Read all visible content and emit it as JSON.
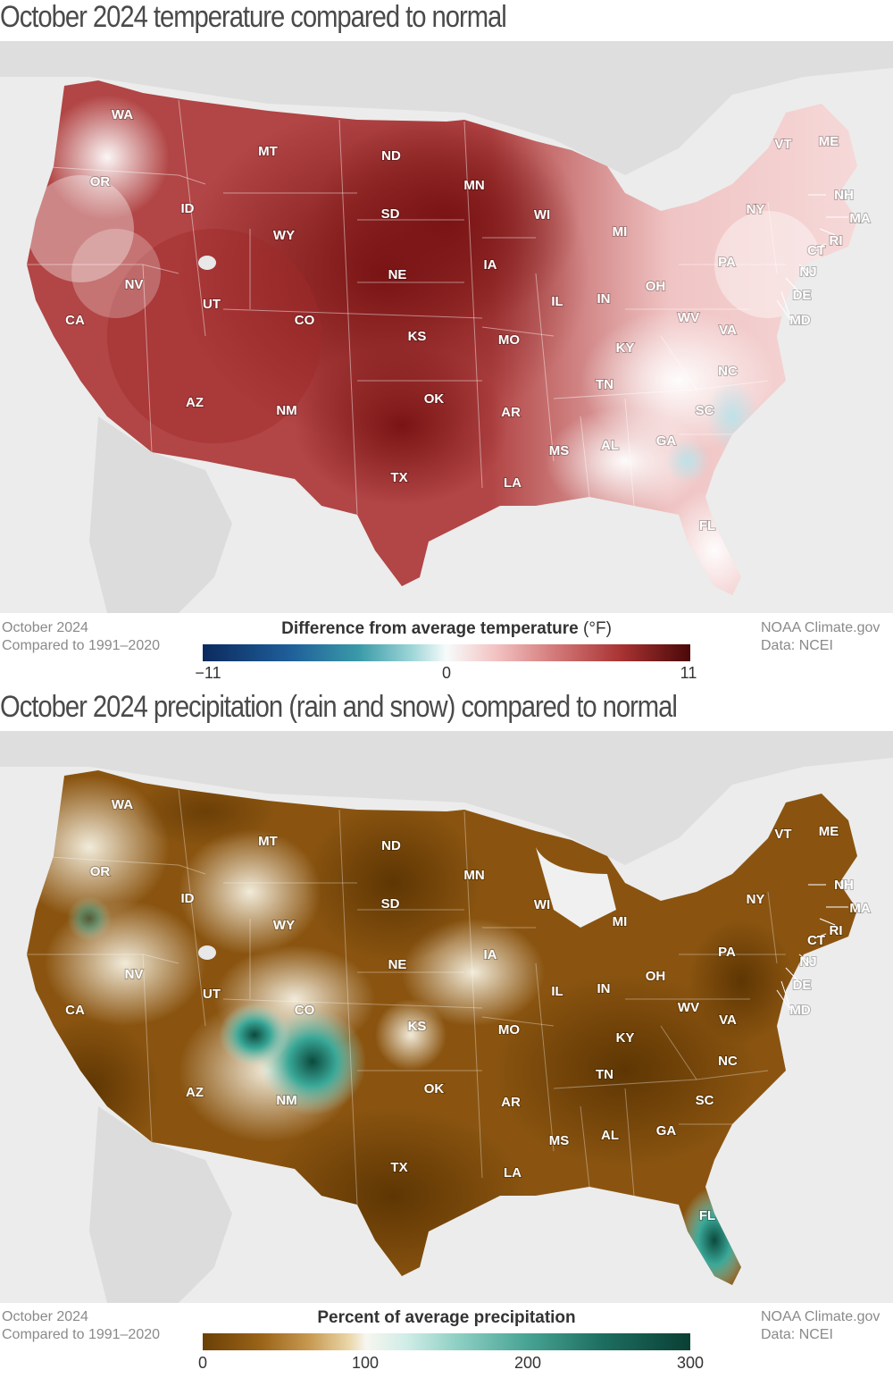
{
  "temperature": {
    "title": "October 2024 temperature compared to normal",
    "legend_title": "Difference from average temperature",
    "legend_unit": "(°F)",
    "ticks": [
      "−11",
      "0",
      "11"
    ],
    "colors": {
      "cold": "#0b2a5e",
      "mid": "#f7fbfb",
      "warm": "#b03a3a",
      "hot": "#5a0a0a"
    },
    "note_left": [
      "October 2024",
      "Compared to 1991–2020"
    ],
    "note_right": [
      "NOAA Climate.gov",
      "Data: NCEI"
    ]
  },
  "precipitation": {
    "title": "October 2024 precipitation (rain and snow) compared to normal",
    "legend_title": "Percent of average precipitation",
    "ticks": [
      "0",
      "100",
      "200",
      "300"
    ],
    "colors": {
      "dry": "#6b3f06",
      "normal": "#f7f6f0",
      "wet": "#0a3f34"
    },
    "note_left": [
      "October 2024",
      "Compared to 1991–2020"
    ],
    "note_right": [
      "NOAA Climate.gov",
      "Data: NCEI"
    ]
  },
  "states": [
    "WA",
    "OR",
    "CA",
    "ID",
    "NV",
    "MT",
    "WY",
    "UT",
    "AZ",
    "CO",
    "NM",
    "ND",
    "SD",
    "NE",
    "KS",
    "OK",
    "TX",
    "MN",
    "IA",
    "MO",
    "AR",
    "LA",
    "WI",
    "IL",
    "MS",
    "MI",
    "IN",
    "KY",
    "TN",
    "AL",
    "OH",
    "GA",
    "FL",
    "WV",
    "VA",
    "NC",
    "SC",
    "PA",
    "NY",
    "VT",
    "ME",
    "NH",
    "MA",
    "CT",
    "RI",
    "NJ",
    "DE",
    "MD"
  ]
}
